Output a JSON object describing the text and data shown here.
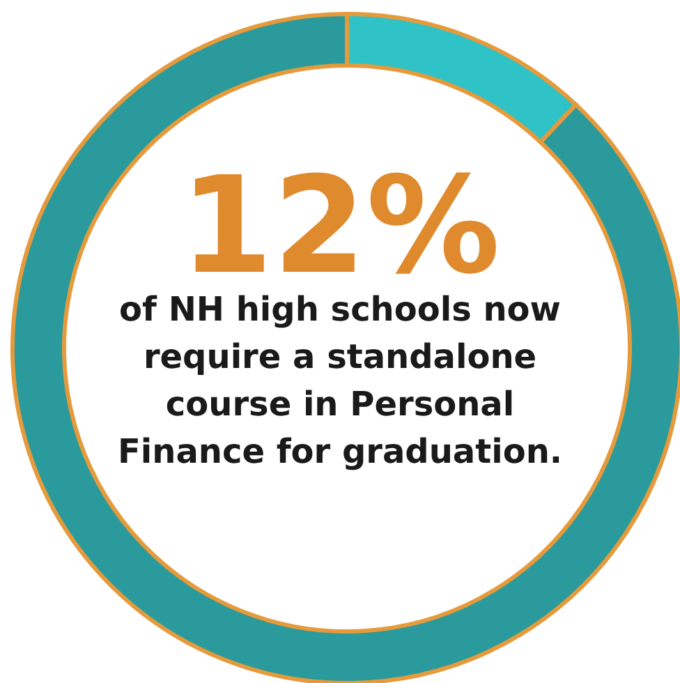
{
  "chart_data": {
    "type": "donut",
    "categories": [
      null,
      null
    ],
    "values": [
      12,
      88
    ],
    "colors": [
      "#2fc2c6",
      "#2a9a9c"
    ],
    "annotations": [
      "12%",
      "of NH high schools now require a standalone course in Personal Finance for graduation."
    ]
  }
}
